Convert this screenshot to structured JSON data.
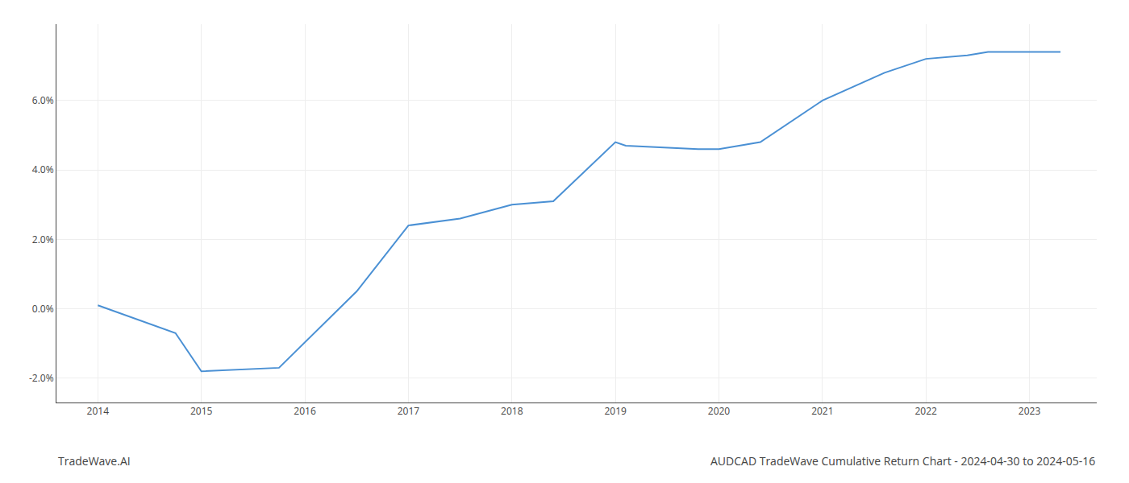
{
  "chart_data": {
    "type": "line",
    "title": "AUDCAD TradeWave Cumulative Return Chart - 2024-04-30 to 2024-05-16",
    "annotations": [
      {
        "text": "TradeWave.AI"
      }
    ],
    "x": [
      2014.0,
      2014.75,
      2015.0,
      2015.75,
      2016.5,
      2017.0,
      2017.5,
      2018.0,
      2018.4,
      2019.0,
      2019.1,
      2019.8,
      2020.0,
      2020.4,
      2021.0,
      2021.6,
      2022.0,
      2022.4,
      2022.6,
      2023.0,
      2023.3
    ],
    "values": [
      0.001,
      -0.007,
      -0.018,
      -0.017,
      0.005,
      0.024,
      0.026,
      0.03,
      0.031,
      0.048,
      0.047,
      0.046,
      0.046,
      0.048,
      0.06,
      0.068,
      0.072,
      0.073,
      0.074,
      0.074,
      0.074
    ],
    "color": "#4a90d4",
    "xlim": [
      2013.6,
      2023.65
    ],
    "ylim": [
      -0.027,
      0.082
    ],
    "xticks": [
      2014,
      2015,
      2016,
      2017,
      2018,
      2019,
      2020,
      2021,
      2022,
      2023
    ],
    "yticks": [
      {
        "value": -0.02,
        "label": "-2.0%"
      },
      {
        "value": 0.0,
        "label": "0.0%"
      },
      {
        "value": 0.02,
        "label": "2.0%"
      },
      {
        "value": 0.04,
        "label": "4.0%"
      },
      {
        "value": 0.06,
        "label": "6.0%"
      }
    ],
    "grid": true
  }
}
